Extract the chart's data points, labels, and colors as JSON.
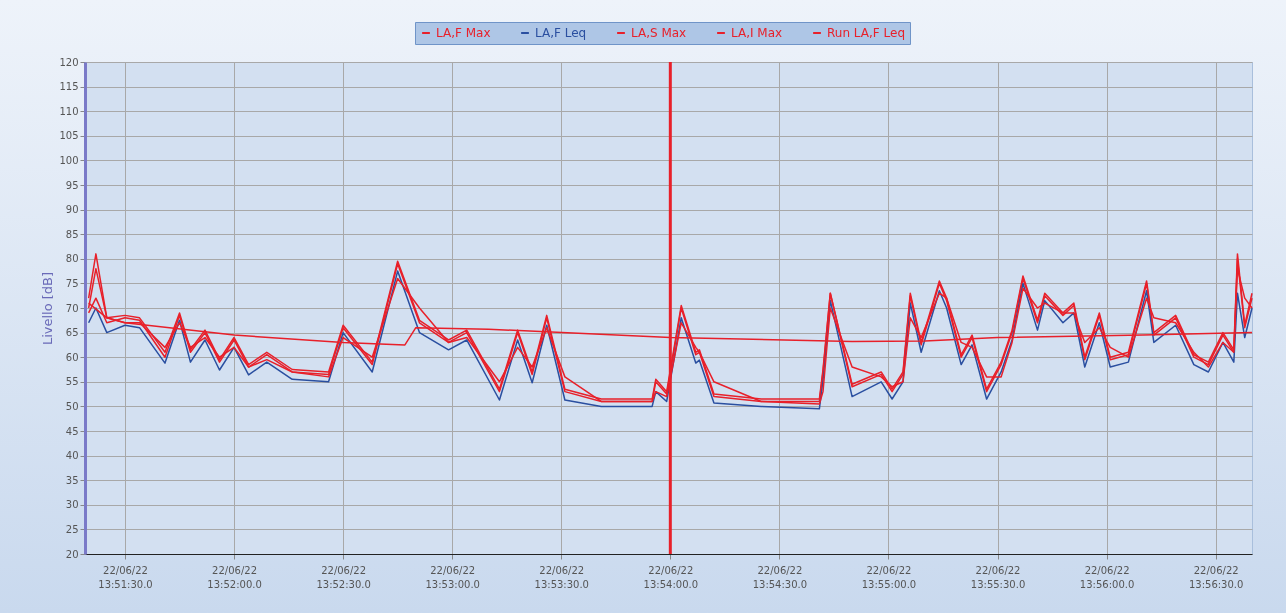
{
  "chart_data": {
    "type": "line",
    "ylabel": "Livello [dB]",
    "x": [
      "--06-22T13:51:20",
      "--06-22T13:51:22",
      "--06-22T13:51:25",
      "--06-22T13:51:30",
      "--06-22T13:51:34",
      "--06-22T13:51:41",
      "--06-22T13:51:45",
      "--06-22T13:51:48",
      "--06-22T13:51:52",
      "--06-22T13:51:56",
      "--06-22T13:52:00",
      "--06-22T13:52:04",
      "--06-22T13:52:09",
      "--06-22T13:52:16",
      "--06-22T13:52:26",
      "--06-22T13:52:30",
      "--06-22T13:52:38",
      "--06-22T13:52:45",
      "--06-22T13:52:51",
      "--06-22T13:52:59",
      "--06-22T13:53:04",
      "--06-22T13:53:13",
      "--06-22T13:53:18",
      "--06-22T13:53:22",
      "--06-22T13:53:26",
      "--06-22T13:53:31",
      "--06-22T13:53:41",
      "--06-22T13:53:55",
      "--06-22T13:53:56",
      "--06-22T13:53:59",
      "--06-22T13:54:03",
      "--06-22T13:54:07",
      "--06-22T13:54:08",
      "--06-22T13:54:12",
      "--06-22T13:54:25",
      "--06-22T13:54:41",
      "--06-22T13:54:42",
      "--06-22T13:54:44",
      "--06-22T13:54:50",
      "--06-22T13:54:58",
      "--06-22T13:55:01",
      "--06-22T13:55:04",
      "--06-22T13:55:06",
      "--06-22T13:55:09",
      "--06-22T13:55:14",
      "--06-22T13:55:16",
      "--06-22T13:55:20",
      "--06-22T13:55:23",
      "--06-22T13:55:27",
      "--06-22T13:55:31",
      "--06-22T13:55:34",
      "--06-22T13:55:37",
      "--06-22T13:55:41",
      "--06-22T13:55:43",
      "--06-22T13:55:48",
      "--06-22T13:55:51",
      "--06-22T13:55:54",
      "--06-22T13:55:58",
      "--06-22T13:56:01",
      "--06-22T13:56:06",
      "--06-22T13:56:11",
      "--06-22T13:56:13",
      "--06-22T13:56:19",
      "--06-22T13:56:24",
      "--06-22T13:56:28",
      "--06-22T13:56:32",
      "--06-22T13:56:35",
      "--06-22T13:56:36",
      "--06-22T13:56:38",
      "--06-22T13:56:40"
    ],
    "xlim": [
      "--06-22T13:51:19",
      "--06-22T13:56:40"
    ],
    "xticks": [
      {
        "value": "--06-22T13:51:30",
        "label": "22/06/22 13:51:30.0"
      },
      {
        "value": "--06-22T13:52:00",
        "label": "22/06/22 13:52:00.0"
      },
      {
        "value": "--06-22T13:52:30",
        "label": "22/06/22 13:52:30.0"
      },
      {
        "value": "--06-22T13:53:00",
        "label": "22/06/22 13:53:00.0"
      },
      {
        "value": "--06-22T13:53:30",
        "label": "22/06/22 13:53:30.0"
      },
      {
        "value": "--06-22T13:54:00",
        "label": "22/06/22 13:54:00.0"
      },
      {
        "value": "--06-22T13:54:30",
        "label": "22/06/22 13:54:30.0"
      },
      {
        "value": "--06-22T13:55:00",
        "label": "22/06/22 13:55:00.0"
      },
      {
        "value": "--06-22T13:55:30",
        "label": "22/06/22 13:55:30.0"
      },
      {
        "value": "--06-22T13:56:00",
        "label": "22/06/22 13:56:00.0"
      },
      {
        "value": "--06-22T13:56:30",
        "label": "22/06/22 13:56:30.0"
      }
    ],
    "ylim": [
      20,
      120
    ],
    "yticks": [
      20,
      25,
      30,
      35,
      40,
      45,
      50,
      55,
      60,
      65,
      70,
      75,
      80,
      85,
      90,
      95,
      100,
      105,
      110,
      115,
      120
    ],
    "grid": true,
    "legend": "top",
    "ref_lines": [
      {
        "axis": "x",
        "value": "--06-22T13:54:00",
        "color": "#e8202a"
      }
    ],
    "series": [
      {
        "name": "LA,F Max",
        "color": "#e8202a",
        "values": [
          69,
          72,
          67,
          68,
          67.5,
          60,
          68.5,
          61,
          65,
          59,
          63.5,
          58,
          60.5,
          57,
          56.5,
          66,
          58.5,
          79,
          67,
          63,
          65,
          53,
          65,
          56.5,
          68,
          53,
          51,
          51,
          55,
          52.5,
          70,
          60.5,
          61,
          52,
          51,
          51,
          57,
          73,
          54,
          56.5,
          53,
          56.5,
          72.5,
          62.5,
          75,
          71.5,
          60,
          64,
          53,
          58.5,
          65,
          76,
          67,
          72.5,
          68.5,
          70.5,
          59.5,
          68.5,
          59.5,
          60.5,
          75,
          64.5,
          68,
          60,
          58.5,
          64.5,
          61,
          80,
          66,
          72
        ]
      },
      {
        "name": "LA,F Leq",
        "color": "#2a4fa0",
        "values": [
          67,
          70,
          65,
          66.5,
          66,
          58.8,
          67.5,
          59,
          63.5,
          57.4,
          62,
          56.4,
          59,
          55.5,
          55,
          65,
          57,
          77.5,
          65,
          61.5,
          63.5,
          51.3,
          63.5,
          54.8,
          66.5,
          51.3,
          50,
          50,
          53,
          51,
          68,
          58.8,
          59.4,
          50.7,
          50,
          49.5,
          55.4,
          71.5,
          52,
          55,
          51.5,
          55,
          71,
          61,
          73.5,
          70,
          58.5,
          62.5,
          51.5,
          57,
          63.5,
          75,
          65.5,
          71.5,
          67,
          69,
          58,
          67,
          58,
          59,
          73.5,
          63,
          66.5,
          58.5,
          57,
          63,
          59,
          73,
          64,
          70
        ]
      },
      {
        "name": "LA,S Max",
        "color": "#e8202a",
        "values": [
          70,
          78,
          68,
          67,
          67,
          62,
          67,
          62,
          64,
          60,
          62,
          58,
          59.5,
          57,
          56,
          64,
          60,
          76,
          70,
          63,
          64,
          55,
          62,
          58,
          66,
          56,
          51,
          51,
          53,
          52,
          67,
          62,
          61,
          55,
          51,
          50.5,
          53,
          70,
          58,
          56,
          54,
          55,
          68,
          64,
          73,
          72,
          63,
          62,
          56,
          56,
          63,
          74,
          70,
          71,
          69,
          69,
          63,
          66,
          62,
          60,
          72,
          68,
          67,
          61,
          58,
          63,
          61,
          78,
          72,
          70
        ]
      },
      {
        "name": "LA,I Max",
        "color": "#e8202a",
        "values": [
          72,
          81,
          68,
          68.5,
          68,
          61,
          69,
          61.5,
          65.5,
          59.5,
          64,
          58.5,
          61,
          57.5,
          57,
          66.5,
          59,
          79.5,
          67.5,
          63.5,
          65.5,
          53.5,
          65.5,
          57,
          68.5,
          53.5,
          51.5,
          51.5,
          55.5,
          53,
          70.5,
          61,
          61.5,
          52.5,
          51.5,
          51.5,
          57.5,
          73,
          54.5,
          57,
          53.5,
          57,
          73,
          63,
          75.5,
          72,
          60.5,
          64.5,
          53.5,
          59,
          65.5,
          76.5,
          67.5,
          73,
          69,
          71,
          60,
          69,
          60,
          61,
          75.5,
          65,
          68.5,
          60.5,
          59,
          65,
          61.5,
          81,
          66.5,
          73
        ]
      },
      {
        "name": "Run LA,F Leq",
        "color": "#e8202a",
        "x": [
          "--06-22T13:51:20",
          "--06-22T13:51:25",
          "--06-22T13:51:30",
          "--06-22T13:52:00",
          "--06-22T13:52:30",
          "--06-22T13:52:47",
          "--06-22T13:52:50",
          "--06-22T13:53:10",
          "--06-22T13:54:00",
          "--06-22T13:54:50",
          "--06-22T13:55:10",
          "--06-22T13:55:30",
          "--06-22T13:56:10",
          "--06-22T13:56:40"
        ],
        "values": [
          71,
          68,
          67,
          64.5,
          63,
          62.5,
          66,
          65.7,
          64,
          63.2,
          63.3,
          64,
          64.5,
          65
        ]
      }
    ]
  }
}
